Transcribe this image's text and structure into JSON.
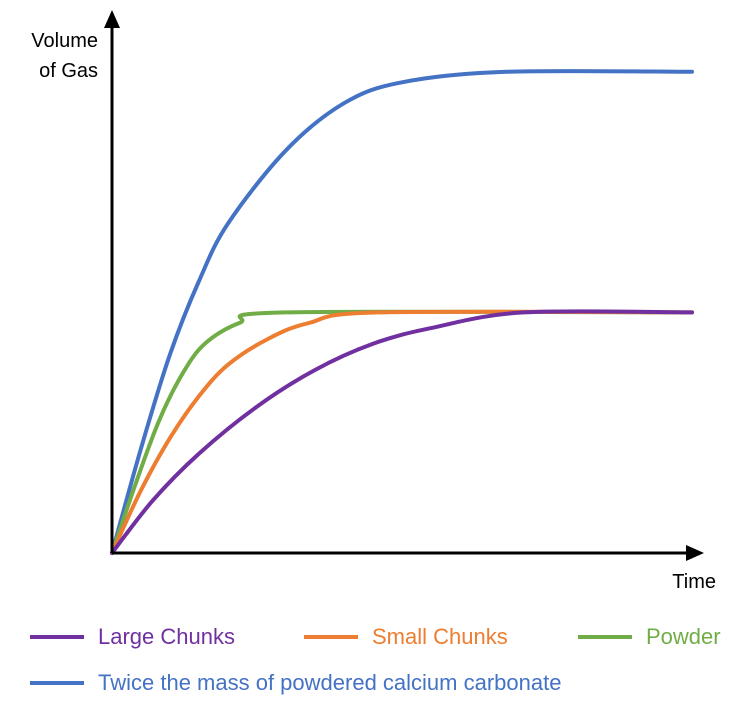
{
  "chart_data": {
    "type": "line",
    "title": "",
    "ylabel_lines": [
      "Volume",
      "of Gas"
    ],
    "xlabel": "Time",
    "grid": false,
    "ticks_shown": false,
    "xlim": [
      0,
      100
    ],
    "ylim": [
      0,
      100
    ],
    "series": [
      {
        "name": "Large Chunks",
        "color": "#7030A0",
        "points": [
          [
            0,
            0
          ],
          [
            7,
            10
          ],
          [
            15,
            19
          ],
          [
            25,
            28
          ],
          [
            35,
            35
          ],
          [
            45,
            40
          ],
          [
            55,
            43
          ],
          [
            71,
            46
          ],
          [
            100,
            46
          ]
        ]
      },
      {
        "name": "Small Chunks",
        "color": "#ED7D31",
        "points": [
          [
            0,
            0
          ],
          [
            5,
            12
          ],
          [
            10,
            22
          ],
          [
            15,
            30
          ],
          [
            20,
            36
          ],
          [
            27,
            41
          ],
          [
            34,
            44
          ],
          [
            46,
            46
          ],
          [
            100,
            46
          ]
        ]
      },
      {
        "name": "Powder",
        "color": "#70AD47",
        "points": [
          [
            0,
            0
          ],
          [
            4,
            13
          ],
          [
            8,
            25
          ],
          [
            12,
            34
          ],
          [
            16,
            40
          ],
          [
            22,
            44
          ],
          [
            30,
            46
          ],
          [
            100,
            46
          ]
        ]
      },
      {
        "name": "Twice the mass of powdered calcium carbonate",
        "color": "#4472C4",
        "points": [
          [
            0,
            0
          ],
          [
            5,
            20
          ],
          [
            10,
            38
          ],
          [
            15,
            52
          ],
          [
            20,
            63
          ],
          [
            30,
            77
          ],
          [
            40,
            86
          ],
          [
            50,
            90
          ],
          [
            68,
            92
          ],
          [
            100,
            92
          ]
        ]
      }
    ],
    "legend": {
      "placement": "bottom",
      "rows": [
        [
          "Large Chunks",
          "Small Chunks",
          "Powder"
        ],
        [
          "Twice the mass of powdered calcium carbonate"
        ]
      ]
    }
  }
}
